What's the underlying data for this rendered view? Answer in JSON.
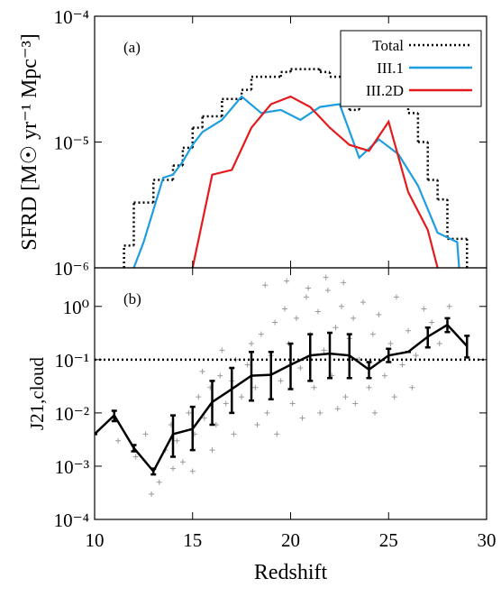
{
  "chart_data": [
    {
      "type": "multi",
      "label": "(a)",
      "ylabel": "SFRD [M☉ yr⁻¹ Mpc⁻³]",
      "log_y": true,
      "xlim": [
        10,
        30
      ],
      "ylim": [
        1e-06,
        0.0001
      ],
      "yticks": [
        {
          "value": 1e-06,
          "label": "10⁻⁶"
        },
        {
          "value": 1e-05,
          "label": "10⁻⁵"
        },
        {
          "value": 0.0001,
          "label": "10⁻⁴"
        }
      ],
      "legend": "upper right",
      "series": [
        {
          "name": "Total",
          "style": "step-dotted",
          "color": "#000000",
          "x": [
            11.5,
            12,
            13,
            14,
            14.5,
            15,
            15.5,
            16.5,
            17.5,
            18,
            19.5,
            20,
            21.5,
            22,
            23,
            23.5,
            24,
            24.5,
            25,
            26,
            26.5,
            27,
            27.5,
            28,
            29
          ],
          "values": [
            1.5e-06,
            3.3e-06,
            5e-06,
            6.5e-06,
            9e-06,
            1.3e-05,
            1.6e-05,
            2.2e-05,
            2.6e-05,
            3.3e-05,
            3.6e-05,
            3.8e-05,
            3.6e-05,
            3.3e-05,
            1.8e-05,
            2e-05,
            2.5e-05,
            3e-05,
            3.3e-05,
            1.7e-05,
            1e-05,
            5e-06,
            3.5e-06,
            1.7e-06,
            1e-06
          ]
        },
        {
          "name": "III.1",
          "style": "line",
          "color": "#1e9ee0",
          "x": [
            12,
            12.5,
            13.5,
            14,
            14.5,
            15,
            15.5,
            16.5,
            17.5,
            18.5,
            19.5,
            20.5,
            21.5,
            22.5,
            23.5,
            24.5,
            25.5,
            26.5,
            27.5,
            28.5,
            28.6
          ],
          "values": [
            1e-06,
            1.6e-06,
            5.2e-06,
            5.5e-06,
            7e-06,
            9.5e-06,
            1.2e-05,
            1.5e-05,
            2.3e-05,
            1.7e-05,
            1.8e-05,
            1.5e-05,
            1.9e-05,
            2e-05,
            7.5e-06,
            1.05e-05,
            8e-06,
            4.5e-06,
            1.9e-06,
            1.6e-06,
            1e-06
          ]
        },
        {
          "name": "III.2D",
          "style": "line",
          "color": "#e41a1c",
          "x": [
            15,
            16,
            17,
            18,
            19,
            20,
            21,
            22,
            23,
            24,
            25,
            26,
            27,
            27.5
          ],
          "values": [
            1e-06,
            5.5e-06,
            6e-06,
            1.3e-05,
            2e-05,
            2.3e-05,
            1.9e-05,
            1.3e-05,
            9.5e-06,
            8.5e-06,
            1.45e-05,
            4e-06,
            2e-06,
            1e-06
          ]
        }
      ]
    },
    {
      "type": "errorbar-scatter",
      "label": "(b)",
      "ylabel": "J21,cloud",
      "xlabel": "Redshift",
      "log_y": true,
      "xlim": [
        10,
        30
      ],
      "ylim": [
        0.0001,
        5.3
      ],
      "xticks": [
        10,
        15,
        20,
        25,
        30
      ],
      "yticks": [
        {
          "value": 0.0001,
          "label": "10⁻⁴"
        },
        {
          "value": 0.001,
          "label": "10⁻³"
        },
        {
          "value": 0.01,
          "label": "10⁻²"
        },
        {
          "value": 0.1,
          "label": "10⁻¹"
        },
        {
          "value": 1,
          "label": "10⁰"
        }
      ],
      "hline": 0.1,
      "mean": {
        "color": "#000000",
        "x": [
          10,
          11,
          12,
          13,
          14,
          15,
          16,
          17,
          18,
          19,
          20,
          21,
          22,
          23,
          24,
          25,
          26,
          27,
          28,
          29
        ],
        "values": [
          0.004,
          0.009,
          0.0022,
          0.0008,
          0.004,
          0.005,
          0.016,
          0.028,
          0.05,
          0.052,
          0.08,
          0.12,
          0.13,
          0.12,
          0.065,
          0.12,
          0.14,
          0.27,
          0.45,
          0.18
        ],
        "lower": [
          0.004,
          0.007,
          0.0019,
          0.0007,
          0.0015,
          0.002,
          0.006,
          0.01,
          0.017,
          0.018,
          0.028,
          0.04,
          0.045,
          0.045,
          0.045,
          0.09,
          0.14,
          0.17,
          0.33,
          0.11
        ],
        "upper": [
          0.004,
          0.011,
          0.0025,
          0.0009,
          0.009,
          0.013,
          0.04,
          0.07,
          0.14,
          0.14,
          0.2,
          0.3,
          0.32,
          0.3,
          0.09,
          0.16,
          0.14,
          0.4,
          0.6,
          0.28
        ]
      },
      "scatter": {
        "color": "#999999",
        "x": [
          11.2,
          12.1,
          12.6,
          13.3,
          13.6,
          13.9,
          14.2,
          14.5,
          14.8,
          15.1,
          15.3,
          15.6,
          15.9,
          16.2,
          16.4,
          16.7,
          17.0,
          17.2,
          17.5,
          17.8,
          18.0,
          18.2,
          18.5,
          18.8,
          19.0,
          19.2,
          19.5,
          19.7,
          19.9,
          20.1,
          20.3,
          20.5,
          20.8,
          21.0,
          21.2,
          21.4,
          21.7,
          21.9,
          22.1,
          22.3,
          22.6,
          22.8,
          23.0,
          23.2,
          23.5,
          23.7,
          24.0,
          24.2,
          24.5,
          24.8,
          25.1,
          25.4,
          25.7,
          26.0,
          26.4,
          26.8,
          27.2,
          27.6,
          28.1,
          12.9,
          14.0,
          15.0,
          16.0,
          17.1,
          18.3,
          19.3,
          20.6,
          21.5,
          22.4,
          23.3,
          24.3,
          25.3,
          26.2,
          18.7,
          19.8,
          20.9,
          21.8,
          22.7,
          16.5,
          15.5
        ],
        "values": [
          0.003,
          0.0015,
          0.004,
          0.0005,
          0.002,
          0.006,
          0.003,
          0.0012,
          0.01,
          0.004,
          0.02,
          0.008,
          0.03,
          0.006,
          0.05,
          0.015,
          0.04,
          0.1,
          0.02,
          0.08,
          0.2,
          0.03,
          0.3,
          0.01,
          0.12,
          0.5,
          0.04,
          0.9,
          0.2,
          0.015,
          0.6,
          0.07,
          1.5,
          0.3,
          0.03,
          0.8,
          0.15,
          2.0,
          0.05,
          0.4,
          1.0,
          0.02,
          0.25,
          0.6,
          0.1,
          1.2,
          0.03,
          0.3,
          0.7,
          0.05,
          0.2,
          1.5,
          0.08,
          0.35,
          0.12,
          0.9,
          0.5,
          0.2,
          1.0,
          0.0003,
          0.0009,
          0.0008,
          0.002,
          0.004,
          0.006,
          0.004,
          0.008,
          0.01,
          0.012,
          0.015,
          0.01,
          0.02,
          0.03,
          2.5,
          3.0,
          2.2,
          3.5,
          2.8,
          0.15,
          0.06
        ]
      }
    }
  ]
}
